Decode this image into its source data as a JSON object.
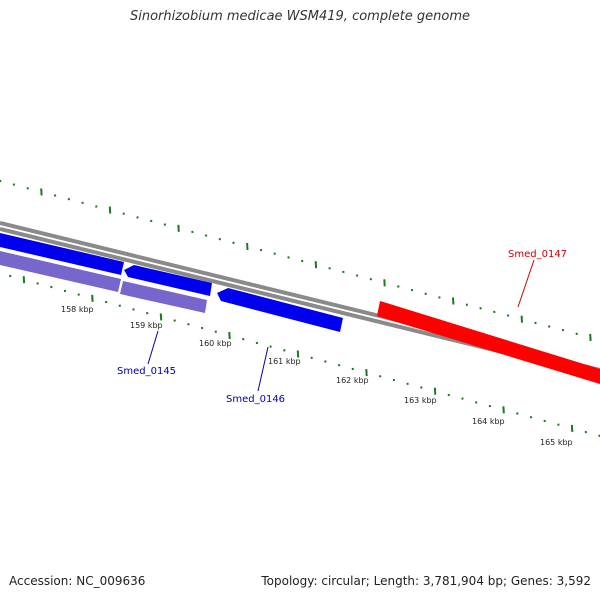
{
  "title": "Sinorhizobium medicae WSM419, complete genome",
  "footer": {
    "accession": "Accession: NC_009636",
    "summary": "Topology: circular; Length: 3,781,904 bp; Genes: 3,592"
  },
  "colors": {
    "tick": "#1a7a1a",
    "backbone": "#888888",
    "gene_forward": "#ff0000",
    "gene_reverse": "#0000ee",
    "cds_reverse": "#7766cc",
    "label_forward": "#cc0000",
    "label_reverse": "#0000aa",
    "scale_text": "#222222"
  },
  "scale_labels": [
    "158 kbp",
    "159 kbp",
    "160 kbp",
    "161 kbp",
    "162 kbp",
    "163 kbp",
    "164 kbp",
    "165 kbp"
  ],
  "genes": [
    {
      "label": "Smed_0145",
      "strand": "reverse"
    },
    {
      "label": "Smed_0146",
      "strand": "reverse"
    },
    {
      "label": "Smed_0147",
      "strand": "forward"
    }
  ]
}
